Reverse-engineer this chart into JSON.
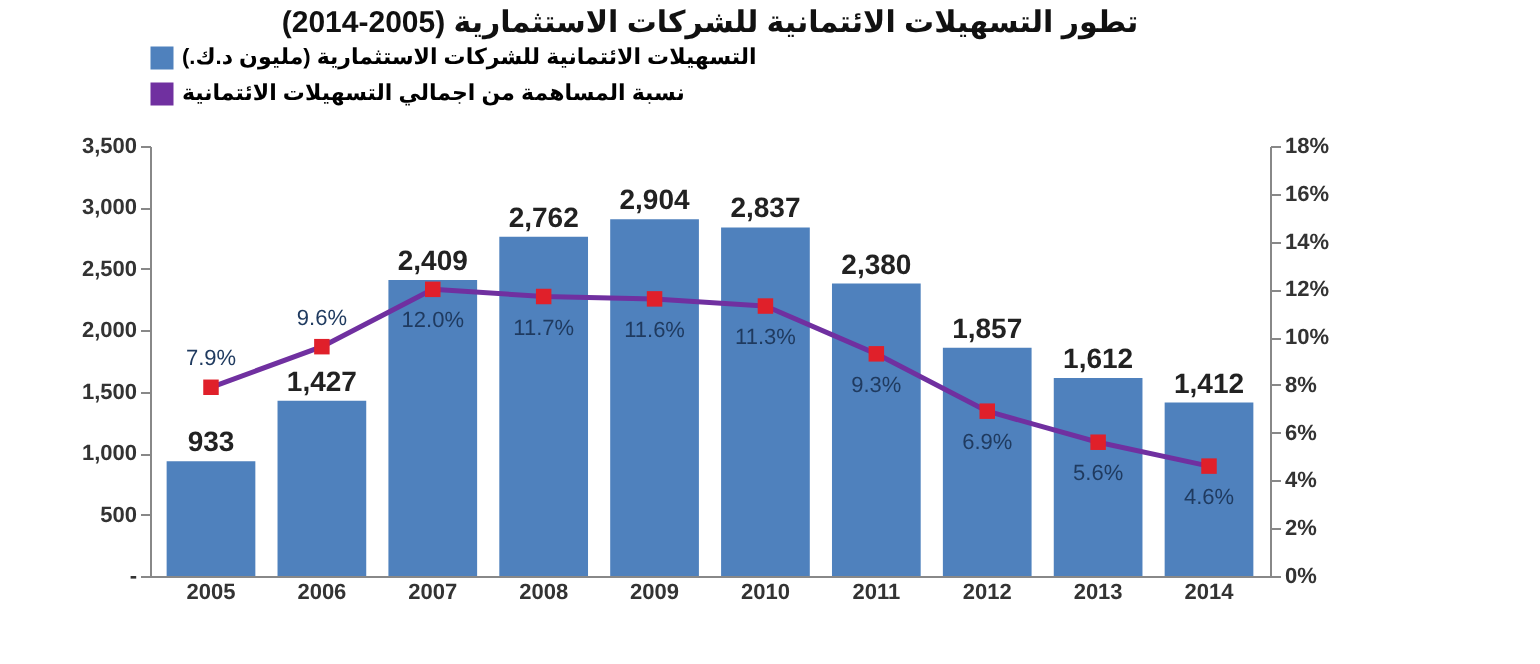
{
  "chart_data": {
    "type": "bar",
    "title": "تطور التسهيلات الائتمانية للشركات الاستثمارية (2005-2014)",
    "categories": [
      "2005",
      "2006",
      "2007",
      "2008",
      "2009",
      "2010",
      "2011",
      "2012",
      "2013",
      "2014"
    ],
    "series": [
      {
        "name": "التسهيلات الائتمانية للشركات الاستثمارية (مليون د.ك.)",
        "type": "bar",
        "color": "#4f81bd",
        "values": [
          933,
          1427,
          2409,
          2762,
          2904,
          2837,
          2380,
          1857,
          1612,
          1412
        ],
        "value_labels": [
          "933",
          "1,427",
          "2,409",
          "2,762",
          "2,904",
          "2,837",
          "2,380",
          "1,857",
          "1,612",
          "1,412"
        ]
      },
      {
        "name": "نسبة المساهمة من اجمالي التسهيلات الائتمانية",
        "type": "line",
        "axis": "y2",
        "color": "#7030a0",
        "values": [
          7.9,
          9.6,
          12.0,
          11.7,
          11.6,
          11.3,
          9.3,
          6.9,
          5.6,
          4.6
        ],
        "value_labels": [
          "7.9%",
          "9.6%",
          "12.0%",
          "11.7%",
          "11.6%",
          "11.3%",
          "9.3%",
          "6.9%",
          "5.6%",
          "4.6%"
        ]
      }
    ],
    "ylim": [
      0,
      3500
    ],
    "yticks": [
      {
        "value": 0,
        "label": "-"
      },
      500,
      {
        "value": 1000,
        "label": "1,000"
      },
      {
        "value": 1500,
        "label": "1,500"
      },
      {
        "value": 2000,
        "label": "2,000"
      },
      {
        "value": 2500,
        "label": "2,500"
      },
      {
        "value": 3000,
        "label": "3,000"
      },
      {
        "value": 3500,
        "label": "3,500"
      }
    ],
    "y2lim": [
      0,
      18
    ],
    "y2ticks": [
      {
        "value": 0,
        "label": "0%"
      },
      {
        "value": 2,
        "label": "2%"
      },
      {
        "value": 4,
        "label": "4%"
      },
      {
        "value": 6,
        "label": "6%"
      },
      {
        "value": 8,
        "label": "8%"
      },
      {
        "value": 10,
        "label": "10%"
      },
      {
        "value": 12,
        "label": "12%"
      },
      {
        "value": 14,
        "label": "14%"
      },
      {
        "value": 16,
        "label": "16%"
      },
      {
        "value": 18,
        "label": "18%"
      }
    ],
    "marker": "square",
    "legend": "top",
    "grid": false
  }
}
